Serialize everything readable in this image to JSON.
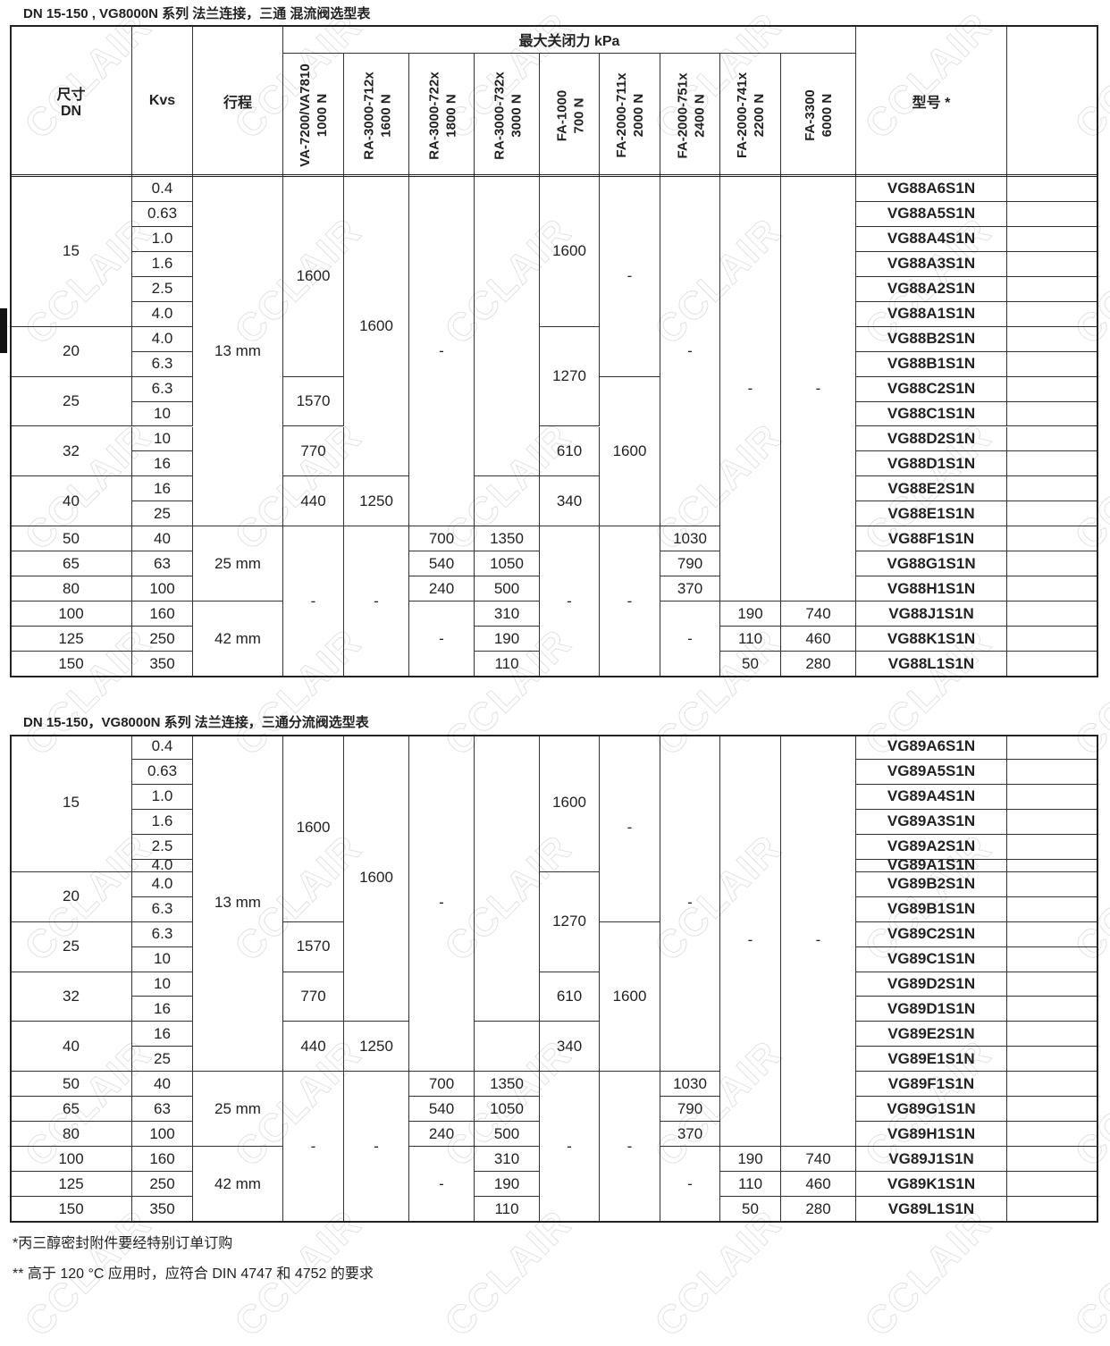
{
  "watermark": "CCLAIR",
  "tables": [
    {
      "title": "DN 15-150 , VG8000N 系列 法兰连接，三通 混流阀选型表",
      "header": {
        "size_label": "尺寸",
        "size_unit": "DN",
        "kvs": "Kvs",
        "stroke": "行程",
        "force_group": "最大关闭力 kPa",
        "model": "型号 *",
        "actuators": [
          {
            "name": "VA-7200/VA7810",
            "force": "1000 N"
          },
          {
            "name": "RA-3000-712x",
            "force": "1600 N"
          },
          {
            "name": "RA-3000-722x",
            "force": "1800 N"
          },
          {
            "name": "RA-3000-732x",
            "force": "3000 N"
          },
          {
            "name": "FA-1000",
            "force": "700 N"
          },
          {
            "name": "FA-2000-711x",
            "force": "2000 N"
          },
          {
            "name": "FA-2000-751x",
            "force": "2400 N"
          },
          {
            "name": "FA-2000-741x",
            "force": "2200 N"
          },
          {
            "name": "FA-3300",
            "force": "6000 N"
          }
        ]
      },
      "dn": [
        "15",
        "20",
        "25",
        "32",
        "40",
        "50",
        "65",
        "80",
        "100",
        "125",
        "150"
      ],
      "kvs": [
        "0.4",
        "0.63",
        "1.0",
        "1.6",
        "2.5",
        "4.0",
        "4.0",
        "6.3",
        "6.3",
        "10",
        "10",
        "16",
        "16",
        "25",
        "40",
        "63",
        "100",
        "160",
        "250",
        "350"
      ],
      "stroke": [
        "13 mm",
        "25 mm",
        "42 mm"
      ],
      "actuator_values": [
        [
          "1600",
          "1570",
          "770",
          "440",
          "-"
        ],
        [
          "1600",
          "1250",
          "-"
        ],
        [
          "-",
          "700",
          "540",
          "240",
          "-"
        ],
        [
          "1350",
          "1050",
          "500",
          "310",
          "190",
          "110"
        ],
        [
          "1600",
          "1270",
          "610",
          "340",
          "-"
        ],
        [
          "-",
          "1600",
          "-"
        ],
        [
          "-",
          "1030",
          "790",
          "370",
          "-"
        ],
        [
          "-",
          "190",
          "110",
          "50"
        ],
        [
          "-",
          "740",
          "460",
          "280"
        ]
      ],
      "model": [
        "VG88A6S1N",
        "VG88A5S1N",
        "VG88A4S1N",
        "VG88A3S1N",
        "VG88A2S1N",
        "VG88A1S1N",
        "VG88B2S1N",
        "VG88B1S1N",
        "VG88C2S1N",
        "VG88C1S1N",
        "VG88D2S1N",
        "VG88D1S1N",
        "VG88E2S1N",
        "VG88E1S1N",
        "VG88F1S1N",
        "VG88G1S1N",
        "VG88H1S1N",
        "VG88J1S1N",
        "VG88K1S1N",
        "VG88L1S1N"
      ]
    },
    {
      "title": "DN 15-150，VG8000N 系列 法兰连接，三通分流阀选型表",
      "dn": [
        "15",
        "20",
        "25",
        "32",
        "40",
        "50",
        "65",
        "80",
        "100",
        "125",
        "150"
      ],
      "kvs": [
        "0.4",
        "0.63",
        "1.0",
        "1.6",
        "2.5",
        "4.0",
        "4.0",
        "6.3",
        "6.3",
        "10",
        "10",
        "16",
        "16",
        "25",
        "40",
        "63",
        "100",
        "160",
        "250",
        "350"
      ],
      "stroke": [
        "13 mm",
        "25 mm",
        "42 mm"
      ],
      "actuator_values": [
        [
          "1600",
          "1570",
          "770",
          "440",
          "-"
        ],
        [
          "1600",
          "1250",
          "-"
        ],
        [
          "-",
          "700",
          "540",
          "240",
          "-"
        ],
        [
          "1350",
          "1050",
          "500",
          "310",
          "190",
          "110"
        ],
        [
          "1600",
          "1270",
          "610",
          "340",
          "-"
        ],
        [
          "-",
          "1600",
          "-"
        ],
        [
          "-",
          "1030",
          "790",
          "370",
          "-"
        ],
        [
          "-",
          "190",
          "110",
          "50"
        ],
        [
          "-",
          "740",
          "460",
          "280"
        ]
      ],
      "model": [
        "VG89A6S1N",
        "VG89A5S1N",
        "VG89A4S1N",
        "VG89A3S1N",
        "VG89A2S1N",
        "VG89A1S1N",
        "VG89B2S1N",
        "VG89B1S1N",
        "VG89C2S1N",
        "VG89C1S1N",
        "VG89D2S1N",
        "VG89D1S1N",
        "VG89E2S1N",
        "VG89E1S1N",
        "VG89F1S1N",
        "VG89G1S1N",
        "VG89H1S1N",
        "VG89J1S1N",
        "VG89K1S1N",
        "VG89L1S1N"
      ]
    }
  ],
  "footnotes": [
    "*丙三醇密封附件要经特别订单订购",
    "** 高于 120 °C 应用时，应符合 DIN 4747 和 4752 的要求"
  ]
}
